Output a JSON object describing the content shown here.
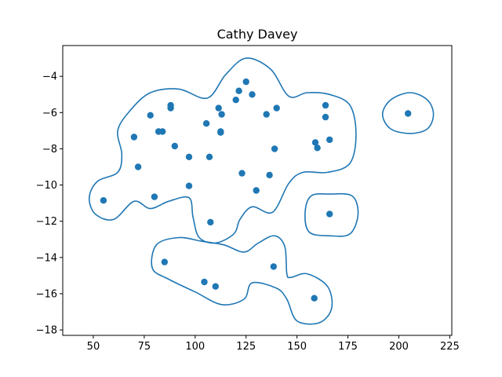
{
  "chart_data": {
    "type": "scatter",
    "title": "Cathy Davey",
    "xlabel": "",
    "ylabel": "",
    "xlim": [
      35,
      226
    ],
    "ylim": [
      -18.3,
      -2.3
    ],
    "grid": false,
    "colors": {
      "point": "#1f77b4",
      "contour": "#1f77b4",
      "frame": "#000000"
    },
    "x_ticks": [
      {
        "value": 50,
        "label": "50"
      },
      {
        "value": 75,
        "label": "75"
      },
      {
        "value": 100,
        "label": "100"
      },
      {
        "value": 125,
        "label": "125"
      },
      {
        "value": 150,
        "label": "150"
      },
      {
        "value": 175,
        "label": "175"
      },
      {
        "value": 200,
        "label": "200"
      },
      {
        "value": 225,
        "label": "225"
      }
    ],
    "y_ticks": [
      {
        "value": -4,
        "label": "−4"
      },
      {
        "value": -6,
        "label": "−6"
      },
      {
        "value": -8,
        "label": "−8"
      },
      {
        "value": -10,
        "label": "−10"
      },
      {
        "value": -12,
        "label": "−12"
      },
      {
        "value": -14,
        "label": "−14"
      },
      {
        "value": -16,
        "label": "−16"
      },
      {
        "value": -18,
        "label": "−18"
      }
    ],
    "points": [
      [
        55,
        -10.85
      ],
      [
        70,
        -7.35
      ],
      [
        72,
        -9.0
      ],
      [
        78,
        -6.15
      ],
      [
        80,
        -10.65
      ],
      [
        82,
        -7.05
      ],
      [
        84,
        -7.05
      ],
      [
        85,
        -14.25
      ],
      [
        88,
        -5.6
      ],
      [
        88,
        -5.75
      ],
      [
        90,
        -7.85
      ],
      [
        97,
        -8.45
      ],
      [
        97,
        -10.05
      ],
      [
        104.5,
        -15.35
      ],
      [
        105.5,
        -6.6
      ],
      [
        107,
        -8.45
      ],
      [
        107.5,
        -12.05
      ],
      [
        110,
        -15.6
      ],
      [
        111.5,
        -5.75
      ],
      [
        112.5,
        -7.05
      ],
      [
        112.5,
        -7.1
      ],
      [
        113,
        -6.1
      ],
      [
        120,
        -5.3
      ],
      [
        121.5,
        -4.8
      ],
      [
        123,
        -9.35
      ],
      [
        125,
        -4.3
      ],
      [
        128,
        -5.0
      ],
      [
        130,
        -10.3
      ],
      [
        135,
        -6.1
      ],
      [
        136.5,
        -9.45
      ],
      [
        138.5,
        -14.5
      ],
      [
        139,
        -8.0
      ],
      [
        140,
        -5.75
      ],
      [
        158.5,
        -16.25
      ],
      [
        159,
        -7.65
      ],
      [
        160,
        -7.95
      ],
      [
        164,
        -5.6
      ],
      [
        164,
        -6.25
      ],
      [
        166,
        -7.5
      ],
      [
        166,
        -11.6
      ],
      [
        204.5,
        -6.05
      ]
    ],
    "contours": [
      [
        [
          125,
          -3.0
        ],
        [
          137,
          -3.6
        ],
        [
          146,
          -5.1
        ],
        [
          155,
          -4.9
        ],
        [
          166,
          -5.0
        ],
        [
          176,
          -5.6
        ],
        [
          179,
          -7.2
        ],
        [
          176,
          -8.8
        ],
        [
          165,
          -9.3
        ],
        [
          153,
          -9.3
        ],
        [
          146,
          -9.9
        ],
        [
          138,
          -11.5
        ],
        [
          128,
          -11.2
        ],
        [
          122,
          -11.9
        ],
        [
          119,
          -12.7
        ],
        [
          110,
          -13.2
        ],
        [
          102,
          -12.9
        ],
        [
          99,
          -11.8
        ],
        [
          97,
          -10.7
        ],
        [
          87,
          -10.9
        ],
        [
          78,
          -11.3
        ],
        [
          70,
          -10.9
        ],
        [
          60,
          -11.9
        ],
        [
          51,
          -11.6
        ],
        [
          48,
          -10.7
        ],
        [
          52,
          -9.8
        ],
        [
          62,
          -9.3
        ],
        [
          64,
          -8.3
        ],
        [
          62,
          -7.0
        ],
        [
          68,
          -5.9
        ],
        [
          78,
          -4.9
        ],
        [
          92,
          -4.7
        ],
        [
          106,
          -5.2
        ],
        [
          115,
          -3.9
        ]
      ],
      [
        [
          103,
          -13.1
        ],
        [
          114,
          -13.3
        ],
        [
          124,
          -13.7
        ],
        [
          131,
          -13.2
        ],
        [
          139,
          -12.8
        ],
        [
          144,
          -13.4
        ],
        [
          145,
          -14.9
        ],
        [
          147,
          -15.1
        ],
        [
          155,
          -14.9
        ],
        [
          165,
          -15.6
        ],
        [
          167,
          -16.8
        ],
        [
          161,
          -17.6
        ],
        [
          150,
          -17.5
        ],
        [
          145,
          -16.3
        ],
        [
          140,
          -15.7
        ],
        [
          128,
          -15.4
        ],
        [
          124,
          -16.3
        ],
        [
          113,
          -16.6
        ],
        [
          100,
          -15.9
        ],
        [
          87,
          -15.2
        ],
        [
          79,
          -14.6
        ],
        [
          81,
          -13.3
        ],
        [
          92,
          -12.9
        ]
      ],
      [
        [
          166,
          -10.5
        ],
        [
          177,
          -10.6
        ],
        [
          180,
          -11.6
        ],
        [
          176,
          -12.7
        ],
        [
          166,
          -12.8
        ],
        [
          156,
          -12.6
        ],
        [
          154,
          -11.5
        ],
        [
          157,
          -10.6
        ]
      ],
      [
        [
          205.5,
          -4.9
        ],
        [
          214,
          -5.3
        ],
        [
          217,
          -6.1
        ],
        [
          214,
          -6.9
        ],
        [
          205.5,
          -7.15
        ],
        [
          196,
          -6.9
        ],
        [
          192,
          -6.1
        ],
        [
          196,
          -5.3
        ]
      ]
    ]
  }
}
